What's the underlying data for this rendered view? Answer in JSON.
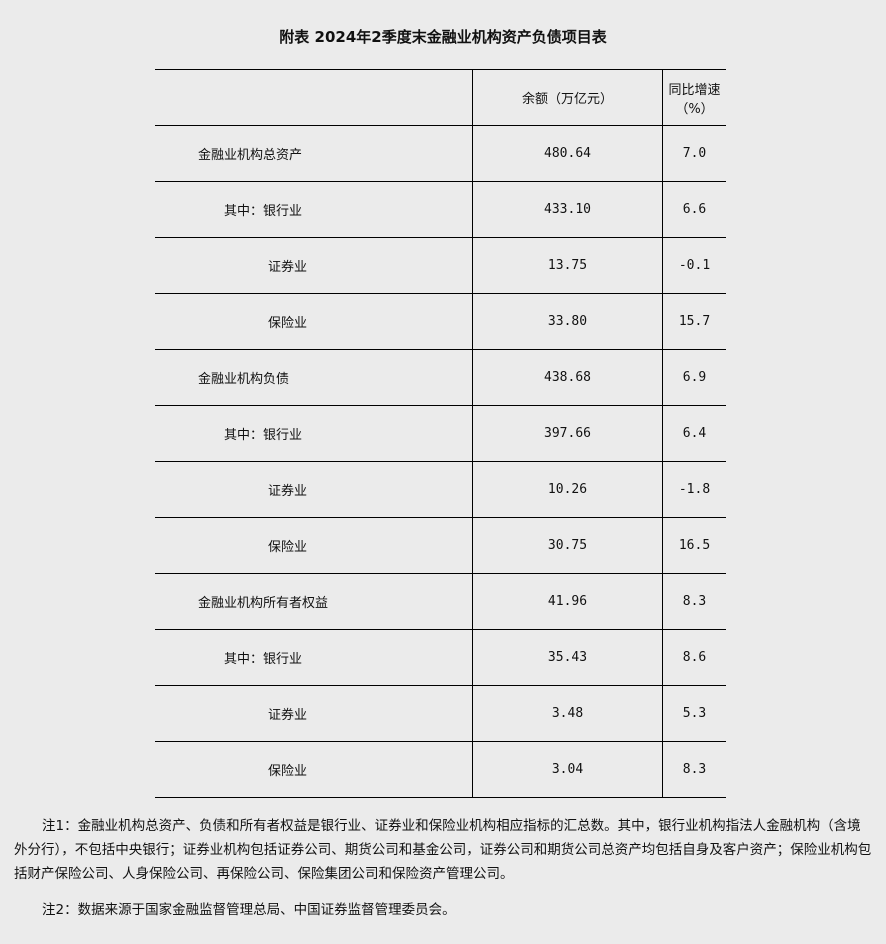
{
  "title": "附表  2024年2季度末金融业机构资产负债项目表",
  "headers": [
    "",
    "余额（万亿元）",
    "同比增速（%）"
  ],
  "rows": [
    {
      "label": "金融业机构总资产",
      "level": 0,
      "amount": "480.64",
      "growth": "7.0"
    },
    {
      "label": "其中：银行业",
      "level": 1,
      "amount": "433.10",
      "growth": "6.6"
    },
    {
      "label": "证券业",
      "level": 2,
      "amount": "13.75",
      "growth": "-0.1"
    },
    {
      "label": "保险业",
      "level": 2,
      "amount": "33.80",
      "growth": "15.7"
    },
    {
      "label": "金融业机构负债",
      "level": 0,
      "amount": "438.68",
      "growth": "6.9"
    },
    {
      "label": "其中：银行业",
      "level": 1,
      "amount": "397.66",
      "growth": "6.4"
    },
    {
      "label": "证券业",
      "level": 2,
      "amount": "10.26",
      "growth": "-1.8"
    },
    {
      "label": "保险业",
      "level": 2,
      "amount": "30.75",
      "growth": "16.5"
    },
    {
      "label": "金融业机构所有者权益",
      "level": 0,
      "amount": "41.96",
      "growth": "8.3"
    },
    {
      "label": "其中：银行业",
      "level": 1,
      "amount": "35.43",
      "growth": "8.6"
    },
    {
      "label": "证券业",
      "level": 2,
      "amount": "3.48",
      "growth": "5.3"
    },
    {
      "label": "保险业",
      "level": 2,
      "amount": "3.04",
      "growth": "8.3"
    }
  ],
  "notes": [
    "注1：金融业机构总资产、负债和所有者权益是银行业、证券业和保险业机构相应指标的汇总数。其中，银行业机构指法人金融机构（含境外分行），不包括中央银行；证券业机构包括证券公司、期货公司和基金公司，证券公司和期货公司总资产均包括自身及客户资产；保险业机构包括财产保险公司、人身保险公司、再保险公司、保险集团公司和保险资产管理公司。",
    "注2：数据来源于国家金融监督管理总局、中国证券监督管理委员会。"
  ]
}
